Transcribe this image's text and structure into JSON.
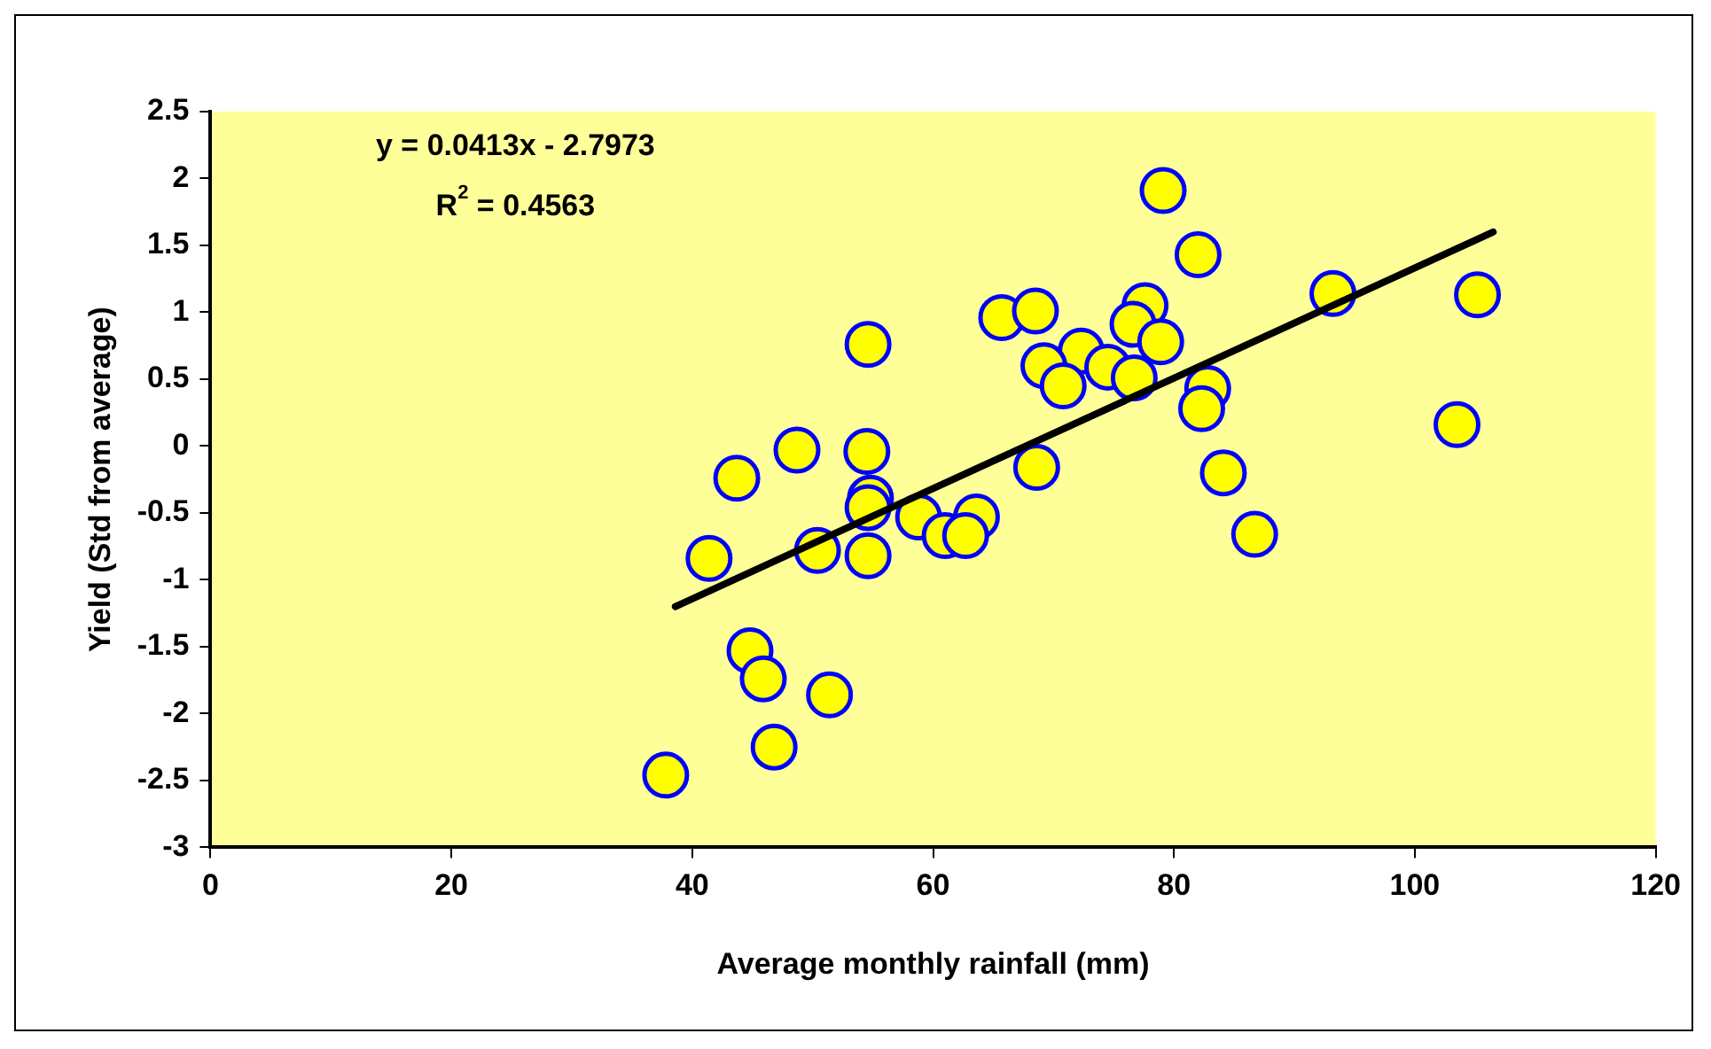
{
  "chart_data": {
    "type": "scatter",
    "xlabel": "Average monthly rainfall (mm)",
    "ylabel": "Yield (Std from average)",
    "annotations": [
      "y = 0.0413x - 2.7973",
      "R$^{2}$ = 0.4563"
    ],
    "xlim": [
      0,
      120
    ],
    "xticks": [
      0,
      20,
      40,
      60,
      80,
      100,
      120
    ],
    "ylim": [
      -3,
      2.5
    ],
    "yticks": [
      -3,
      -2.5,
      -2,
      -1.5,
      -1,
      -0.5,
      0,
      0.5,
      1,
      1.5,
      2,
      2.5
    ],
    "grid": false,
    "legend": false,
    "marker": "circle",
    "series": [
      {
        "color": "#ffff00",
        "x": [
          37.8,
          79.1,
          65.7,
          68.5,
          54.6,
          77.6,
          76.6,
          78.9,
          72.3,
          69.2,
          70.8,
          74.5,
          76.7,
          48.7,
          54.5,
          43.7,
          68.6,
          54.8,
          54.6,
          58.8,
          63.6,
          61.0,
          62.7,
          41.4,
          50.4,
          54.6,
          44.8,
          45.9,
          51.4,
          46.8,
          82.0,
          93.2,
          105.2,
          103.5,
          82.8,
          82.3,
          84.1,
          86.7
        ],
        "values": [
          -2.46,
          1.91,
          0.96,
          1.01,
          0.76,
          1.05,
          0.91,
          0.78,
          0.71,
          0.6,
          0.45,
          0.59,
          0.51,
          -0.03,
          -0.04,
          -0.24,
          -0.16,
          -0.39,
          -0.46,
          -0.53,
          -0.53,
          -0.67,
          -0.67,
          -0.84,
          -0.78,
          -0.82,
          -1.53,
          -1.74,
          -1.86,
          -2.25,
          1.43,
          1.14,
          1.13,
          0.16,
          0.43,
          0.28,
          -0.2,
          -0.66
        ]
      },
      {
        "type": "line",
        "color": "#000000",
        "marker": "none",
        "line_style": "solid",
        "x": [
          38.6,
          106.5
        ],
        "values": [
          -1.2,
          1.6
        ]
      }
    ]
  }
}
